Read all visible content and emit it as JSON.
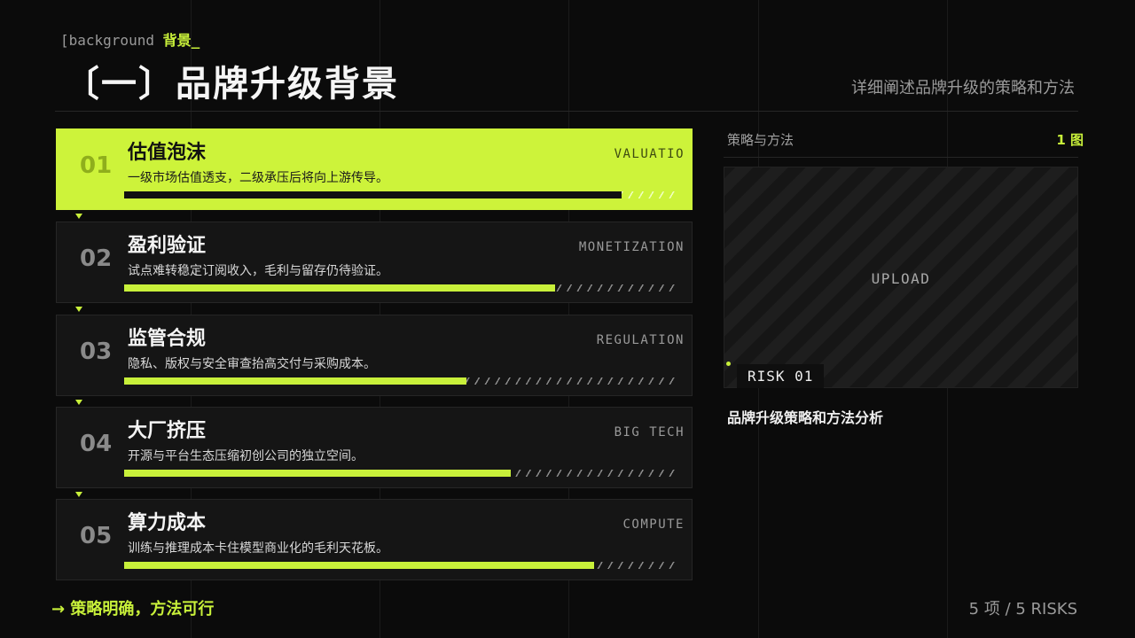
{
  "header": {
    "tag_prefix": "[background",
    "tag_accent": "背景_",
    "title": "〔一〕品牌升级背景",
    "subtitle": "详细阐述品牌升级的策略和方法"
  },
  "items": [
    {
      "number": "01",
      "title": "估值泡沫",
      "description": "一级市场估值透支，二级承压后将向上游传导。",
      "tag": "VALUATIO",
      "progress": 0.9
    },
    {
      "number": "02",
      "title": "盈利验证",
      "description": "试点难转稳定订阅收入，毛利与留存仍待验证。",
      "tag": "MONETIZATION",
      "progress": 0.78
    },
    {
      "number": "03",
      "title": "监管合规",
      "description": "隐私、版权与安全审查抬高交付与采购成本。",
      "tag": "REGULATION",
      "progress": 0.62
    },
    {
      "number": "04",
      "title": "大厂挤压",
      "description": "开源与平台生态压缩初创公司的独立空间。",
      "tag": "BIG TECH",
      "progress": 0.7
    },
    {
      "number": "05",
      "title": "算力成本",
      "description": "训练与推理成本卡住模型商业化的毛利天花板。",
      "tag": "COMPUTE",
      "progress": 0.85
    }
  ],
  "side": {
    "label": "策略与方法",
    "count": "1 图",
    "placeholder": "UPLOAD",
    "badge": "RISK 01",
    "caption": "品牌升级策略和方法分析"
  },
  "footer": {
    "left": "→ 策略明确，方法可行",
    "right": "5 项 / 5 RISKS"
  }
}
